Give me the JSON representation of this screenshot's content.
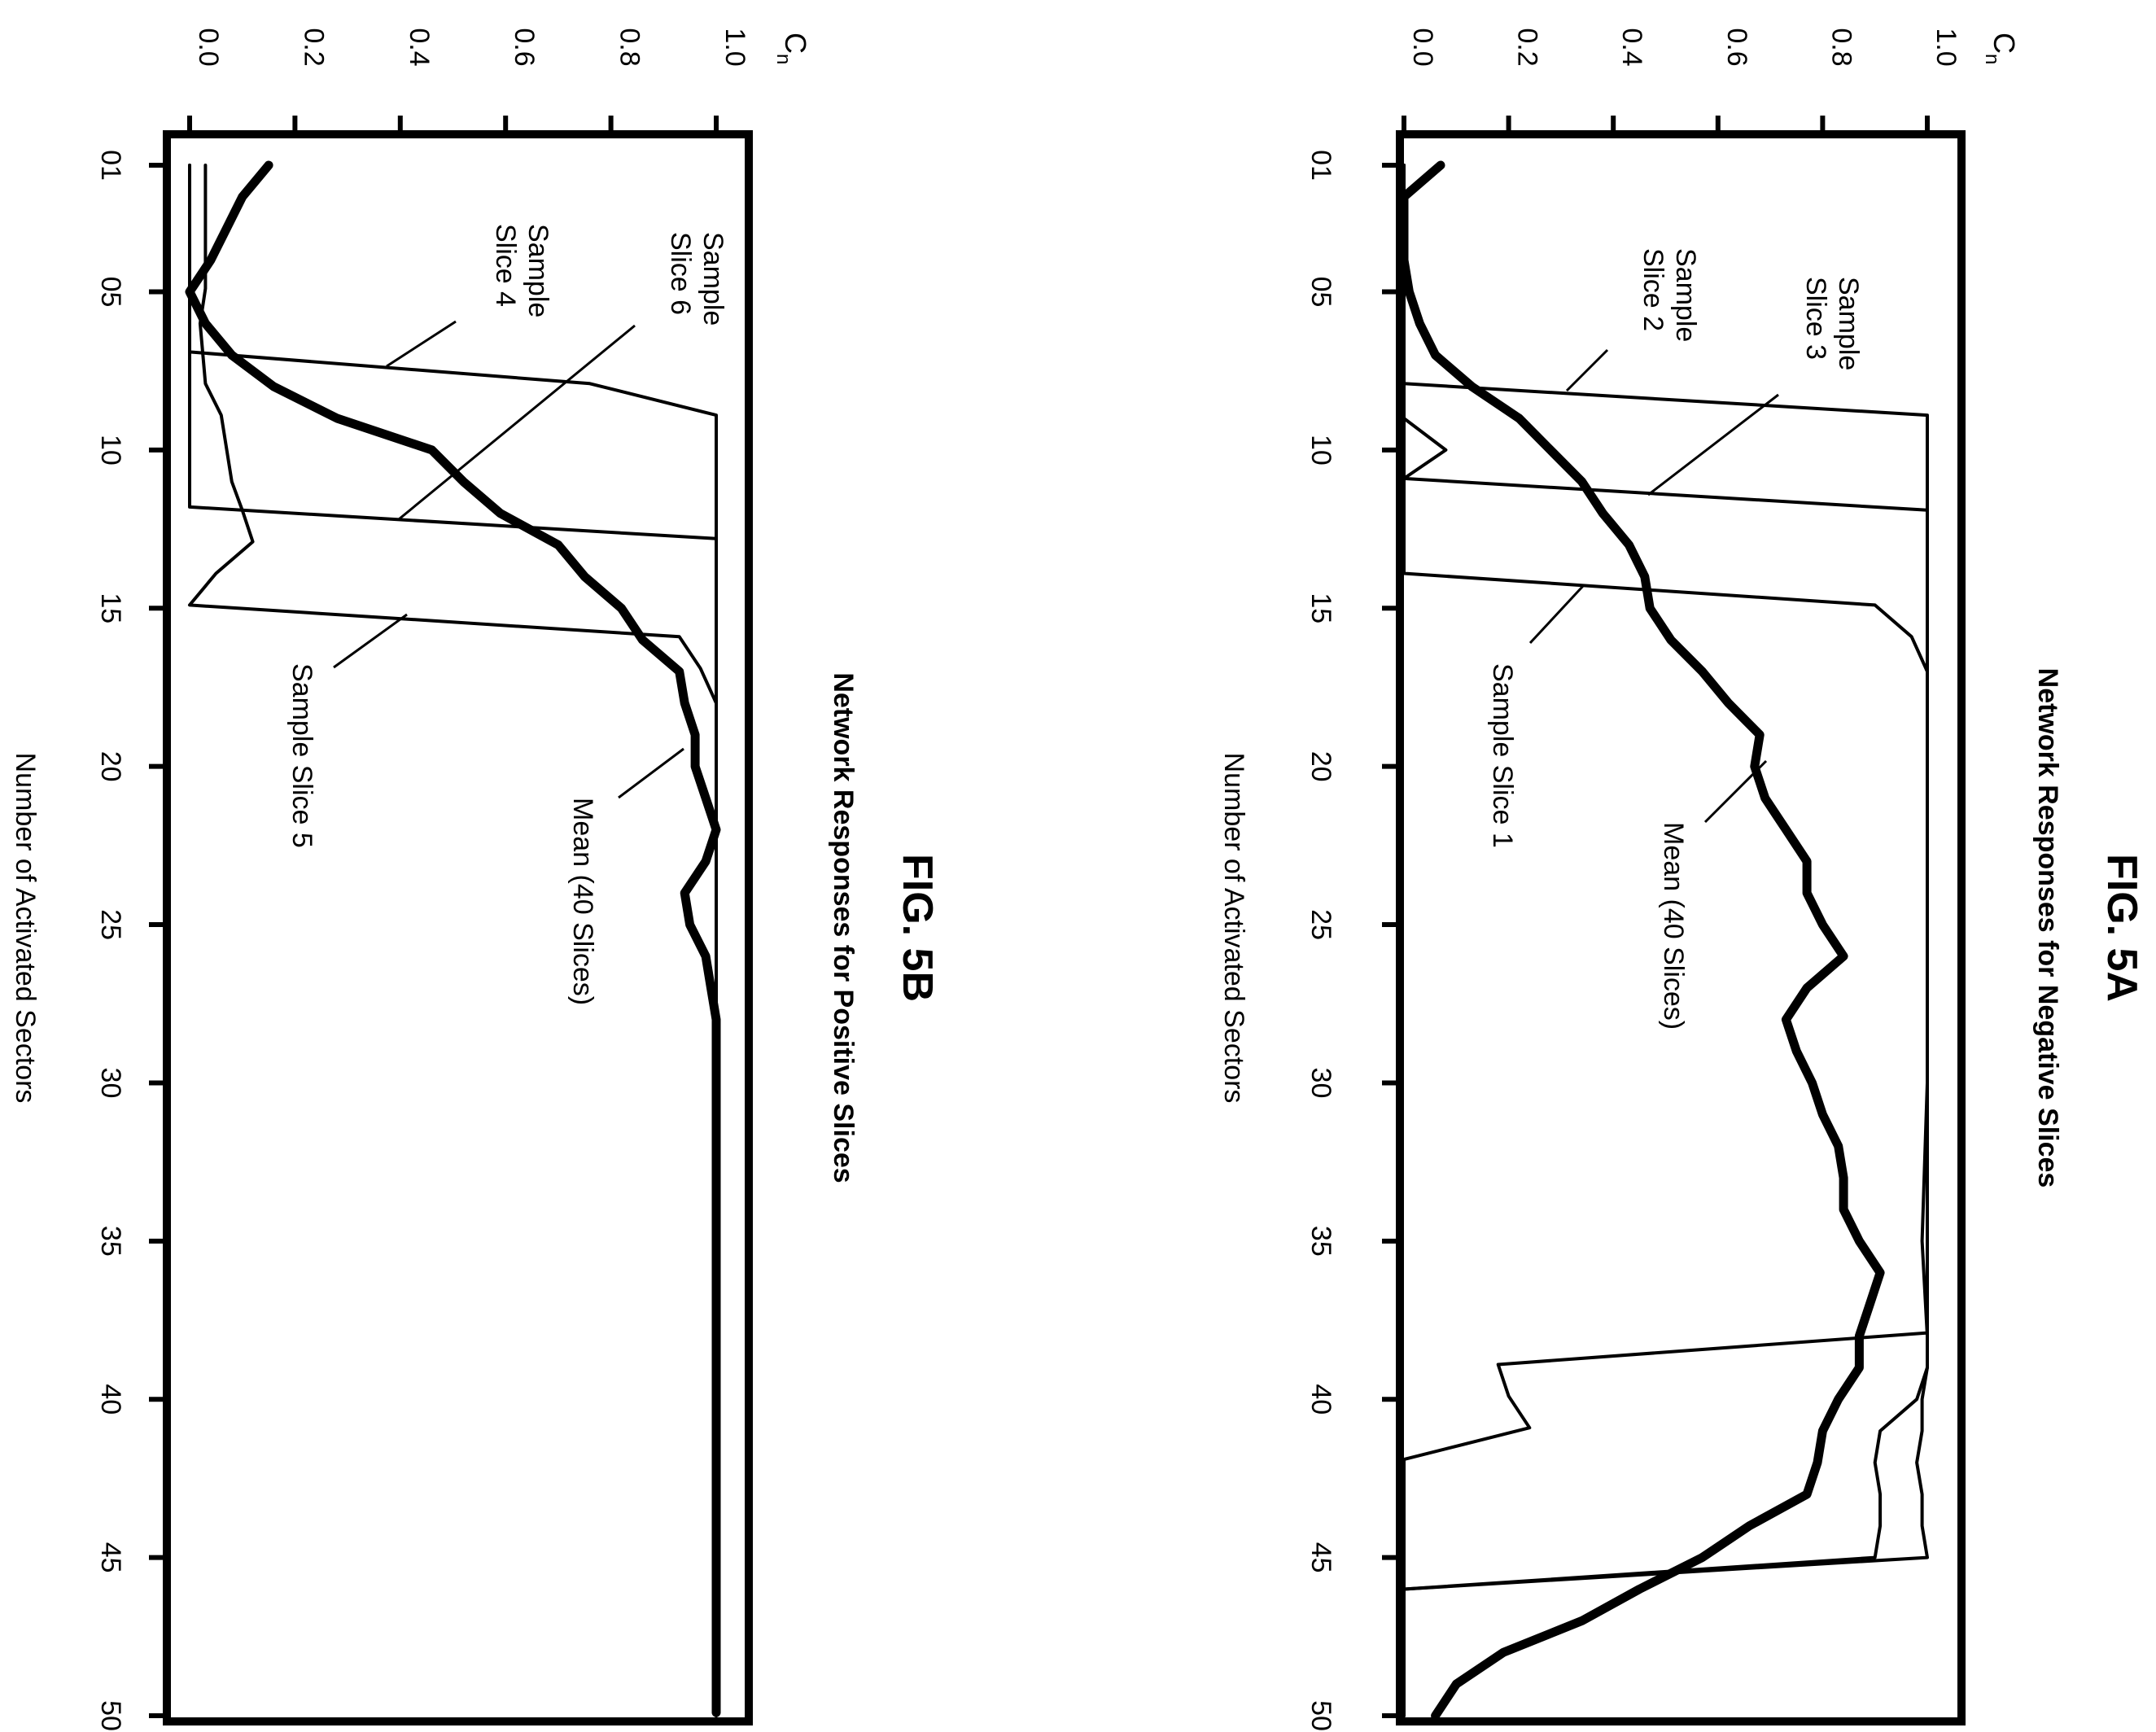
{
  "chart_data": [
    {
      "type": "line",
      "figure_label": "FIG. 5A",
      "title": "Network Responses for Negative Slices",
      "xlabel": "Number of Activated Sectors",
      "ylabel": "Cn",
      "ylabel_main": "C",
      "ylabel_sub": "n",
      "xlim": [
        0,
        50
      ],
      "ylim": [
        0,
        1
      ],
      "x_ticks": [
        "01",
        "05",
        "10",
        "15",
        "20",
        "25",
        "30",
        "35",
        "40",
        "45",
        "50"
      ],
      "y_ticks": [
        "0.0",
        "0.2",
        "0.4",
        "0.6",
        "0.8",
        "1.0"
      ],
      "grid": false,
      "series": [
        {
          "name": "Mean (40 Slices)",
          "bold": true,
          "x": [
            1,
            2,
            3,
            4,
            5,
            6,
            7,
            8,
            9,
            10,
            11,
            12,
            13,
            14,
            15,
            16,
            17,
            18,
            19,
            20,
            21,
            22,
            23,
            24,
            25,
            26,
            27,
            28,
            29,
            30,
            31,
            32,
            33,
            34,
            35,
            36,
            37,
            38,
            39,
            40,
            41,
            42,
            43,
            44,
            45,
            46,
            47,
            48,
            49,
            50
          ],
          "y": [
            0.07,
            0.0,
            0.0,
            0.0,
            0.01,
            0.03,
            0.06,
            0.13,
            0.22,
            0.28,
            0.34,
            0.38,
            0.43,
            0.46,
            0.47,
            0.51,
            0.57,
            0.62,
            0.68,
            0.67,
            0.69,
            0.73,
            0.77,
            0.77,
            0.8,
            0.84,
            0.77,
            0.73,
            0.75,
            0.78,
            0.8,
            0.83,
            0.84,
            0.84,
            0.87,
            0.91,
            0.89,
            0.87,
            0.87,
            0.83,
            0.8,
            0.79,
            0.77,
            0.66,
            0.57,
            0.45,
            0.34,
            0.19,
            0.1,
            0.06
          ]
        },
        {
          "name": "Sample Slice 1",
          "bold": false,
          "x": [
            1,
            13.9,
            14.9,
            15.9,
            17,
            20,
            25,
            30,
            35,
            37,
            38,
            39,
            40,
            41,
            42,
            43,
            44,
            45,
            46,
            47,
            50
          ],
          "y": [
            0.0,
            0.0,
            0.9,
            0.97,
            1.0,
            1.0,
            1.0,
            1.0,
            1.0,
            1.0,
            1.0,
            1.0,
            0.99,
            0.99,
            0.98,
            0.99,
            0.99,
            1.0,
            0.0,
            0.0,
            0.0
          ]
        },
        {
          "name": "Sample Slice 2",
          "bold": false,
          "x": [
            1,
            7.9,
            8.9,
            10,
            15,
            20,
            25,
            30,
            35,
            38,
            39,
            40,
            41,
            42,
            43,
            44,
            45,
            46,
            50
          ],
          "y": [
            0.0,
            0.0,
            1.0,
            1.0,
            1.0,
            1.0,
            1.0,
            1.0,
            0.99,
            1.0,
            1.0,
            0.98,
            0.91,
            0.9,
            0.91,
            0.91,
            0.9,
            0.0,
            0.0
          ]
        },
        {
          "name": "Sample Slice 3",
          "bold": false,
          "x": [
            1,
            9,
            10,
            10.9,
            11.9,
            13,
            20,
            25,
            30,
            35,
            37.9,
            38.9,
            39.9,
            40.9,
            41.9,
            44,
            44.9,
            45.9,
            50
          ],
          "y": [
            0.0,
            0.0,
            0.08,
            0.0,
            1.0,
            1.0,
            1.0,
            1.0,
            1.0,
            1.0,
            1.0,
            0.18,
            0.2,
            0.24,
            0.0,
            0.0,
            0.0,
            0.0,
            0.0
          ]
        }
      ],
      "annotations": [
        {
          "label_lines": [
            "Sample",
            "Slice 3"
          ],
          "target_series": "Sample Slice 3"
        },
        {
          "label_lines": [
            "Sample",
            "Slice 2"
          ],
          "target_series": "Sample Slice 2"
        },
        {
          "label_lines": [
            "Sample Slice 1"
          ],
          "target_series": "Sample Slice 1"
        },
        {
          "label_lines": [
            "Mean (40 Slices)"
          ],
          "target_series": "Mean (40 Slices)"
        }
      ]
    },
    {
      "type": "line",
      "figure_label": "FIG. 5B",
      "title": "Network Responses for Positive Slices",
      "xlabel": "Number of Activated Sectors",
      "ylabel": "Cn",
      "ylabel_main": "C",
      "ylabel_sub": "n",
      "xlim": [
        0,
        50
      ],
      "ylim": [
        0,
        1
      ],
      "x_ticks": [
        "01",
        "05",
        "10",
        "15",
        "20",
        "25",
        "30",
        "35",
        "40",
        "45",
        "50"
      ],
      "y_ticks": [
        "0.0",
        "0.2",
        "0.4",
        "0.6",
        "0.8",
        "1.0"
      ],
      "grid": false,
      "series": [
        {
          "name": "Mean (40 Slices)",
          "bold": true,
          "x": [
            1,
            2,
            3,
            4,
            5,
            6,
            7,
            8,
            9,
            10,
            11,
            12,
            13,
            14,
            15,
            16,
            17,
            18,
            19,
            20,
            21,
            22,
            23,
            24,
            25,
            26,
            27,
            28,
            29,
            30,
            35,
            40,
            45,
            49.9
          ],
          "y": [
            0.15,
            0.1,
            0.07,
            0.04,
            0.0,
            0.03,
            0.08,
            0.16,
            0.28,
            0.46,
            0.52,
            0.59,
            0.7,
            0.75,
            0.82,
            0.86,
            0.93,
            0.94,
            0.96,
            0.96,
            0.98,
            1.0,
            0.98,
            0.94,
            0.95,
            0.98,
            0.99,
            1.0,
            1.0,
            1.0,
            1.0,
            1.0,
            1.0,
            1.0
          ]
        },
        {
          "name": "Sample Slice 4",
          "bold": false,
          "x": [
            1,
            6.9,
            7.9,
            8.9,
            10,
            20,
            30,
            40,
            50
          ],
          "y": [
            0.0,
            0.0,
            0.76,
            1.0,
            1.0,
            1.0,
            1.0,
            1.0,
            1.0
          ]
        },
        {
          "name": "Sample Slice 5",
          "bold": false,
          "x": [
            1,
            4.9,
            6,
            7.9,
            8.9,
            11,
            11.9,
            12.9,
            13.9,
            14.9,
            15.9,
            16.9,
            18,
            19,
            20,
            25,
            30,
            35,
            40,
            45,
            49.9
          ],
          "y": [
            0.03,
            0.03,
            0.02,
            0.03,
            0.06,
            0.08,
            0.1,
            0.12,
            0.05,
            0.0,
            0.93,
            0.97,
            1.0,
            1.0,
            1.0,
            1.0,
            1.0,
            1.0,
            1.0,
            1.0,
            1.0
          ]
        },
        {
          "name": "Sample Slice 6",
          "bold": false,
          "x": [
            1,
            11.8,
            12.8,
            13.8,
            20,
            30,
            40,
            50
          ],
          "y": [
            0.0,
            0.0,
            1.0,
            1.0,
            1.0,
            1.0,
            1.0,
            1.0
          ]
        }
      ],
      "annotations": [
        {
          "label_lines": [
            "Sample",
            "Slice 6"
          ],
          "target_series": "Sample Slice 6"
        },
        {
          "label_lines": [
            "Sample",
            "Slice 4"
          ],
          "target_series": "Sample Slice 4"
        },
        {
          "label_lines": [
            "Sample Slice 5"
          ],
          "target_series": "Sample Slice 5"
        },
        {
          "label_lines": [
            "Mean (40 Slices)"
          ],
          "target_series": "Mean (40 Slices)"
        }
      ]
    }
  ]
}
